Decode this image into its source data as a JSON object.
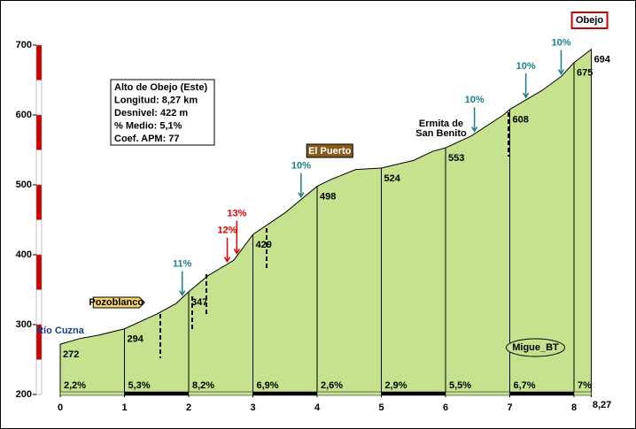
{
  "chart_data": {
    "type": "area",
    "info": [
      "Alto de Obejo (Este)",
      "Longitud: 8,27 km",
      "Desnivel: 422 m",
      "% Medio: 5,1%",
      "Coef. APM: 77"
    ],
    "x": [
      0,
      0.3,
      0.6,
      1,
      1.5,
      1.8,
      2,
      2.3,
      2.7,
      3,
      3.5,
      4,
      4.2,
      4.6,
      5,
      5.5,
      5.8,
      6,
      6.4,
      6.9,
      7,
      7.5,
      7.8,
      8,
      8.1,
      8.27
    ],
    "values": [
      272,
      280,
      285,
      294,
      315,
      330,
      347,
      370,
      392,
      429,
      460,
      498,
      507,
      522,
      524,
      535,
      548,
      553,
      570,
      600,
      608,
      635,
      655,
      675,
      682,
      694
    ],
    "color": "#c6e28f",
    "segment_labels": [
      "2,2%",
      "5,3%",
      "8,2%",
      "6,9%",
      "2,6%",
      "2,9%",
      "5,5%",
      "6,7%",
      "7%"
    ],
    "xlim": [
      0,
      8.27
    ],
    "ylim": [
      200,
      700
    ],
    "xticks": [
      0,
      1,
      2,
      3,
      4,
      5,
      6,
      7,
      8,
      {
        "value": 8.27,
        "label": "8,27"
      }
    ],
    "yticks": [
      200,
      300,
      400,
      500,
      600,
      700
    ],
    "annotations": [
      {
        "text": "Río Cuzna",
        "x": 0
      },
      {
        "text": "Pozoblanco",
        "x": 0.9
      },
      {
        "text": "El Puerto",
        "x": 4.1
      },
      {
        "text": "Ermita de San Benito",
        "x": 6.0
      },
      {
        "text": "Obejo",
        "x": 8.27
      },
      {
        "text": "Migue_BT",
        "x": 7.4
      }
    ],
    "gradients": [
      {
        "text": "11%",
        "x": 1.9,
        "color": "#1a7f8a"
      },
      {
        "text": "12%",
        "x": 2.6,
        "color": "#e00000"
      },
      {
        "text": "13%",
        "x": 2.75,
        "color": "#e00000"
      },
      {
        "text": "10%",
        "x": 3.75,
        "color": "#1a7f8a"
      },
      {
        "text": "10%",
        "x": 6.45,
        "color": "#1a7f8a"
      },
      {
        "text": "10%",
        "x": 7.25,
        "color": "#1a7f8a"
      },
      {
        "text": "10%",
        "x": 7.8,
        "color": "#1a7f8a"
      }
    ]
  }
}
